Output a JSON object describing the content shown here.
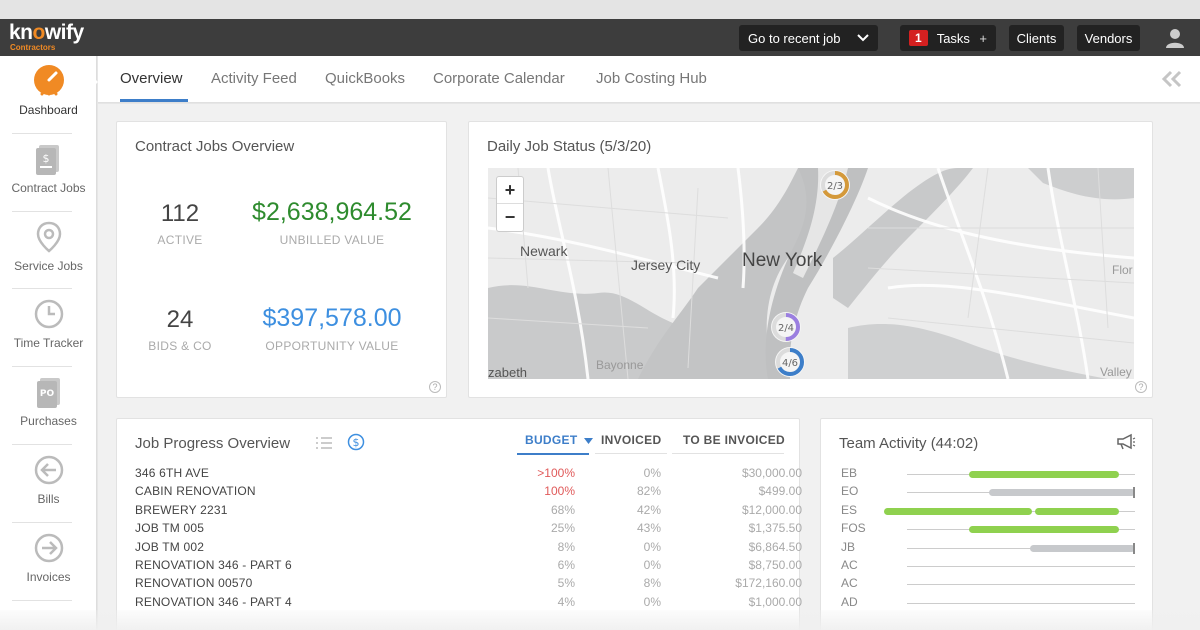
{
  "app": {
    "logo_text_a": "kn",
    "logo_text_b": "o",
    "logo_text_c": "wify",
    "logo_sub": "Contractors"
  },
  "topbar": {
    "recent_job_label": "Go to recent job",
    "tasks_count": "1",
    "tasks_label": "Tasks",
    "tasks_plus": "+",
    "clients_label": "Clients",
    "vendors_label": "Vendors"
  },
  "sidebar": {
    "items": [
      {
        "label": "Dashboard",
        "icon": "speedometer-icon"
      },
      {
        "label": "Contract Jobs",
        "icon": "dollar-document-icon"
      },
      {
        "label": "Service Jobs",
        "icon": "map-pin-icon"
      },
      {
        "label": "Time Tracker",
        "icon": "clock-icon"
      },
      {
        "label": "Purchases",
        "icon": "po-document-icon"
      },
      {
        "label": "Bills",
        "icon": "arrow-left-circle-icon"
      },
      {
        "label": "Invoices",
        "icon": "arrow-right-circle-icon"
      }
    ]
  },
  "tabs": [
    "Overview",
    "Activity Feed",
    "QuickBooks",
    "Corporate Calendar",
    "Job Costing Hub"
  ],
  "contract_jobs": {
    "title": "Contract Jobs Overview",
    "active_count": "112",
    "active_label": "ACTIVE",
    "unbilled_value": "$2,638,964.52",
    "unbilled_label": "UNBILLED VALUE",
    "bids_count": "24",
    "bids_label": "BIDS & CO",
    "opportunity_value": "$397,578.00",
    "opportunity_label": "OPPORTUNITY VALUE",
    "help": "?"
  },
  "daily_status": {
    "title": "Daily Job Status (5/3/20)",
    "zoom_in": "+",
    "zoom_out": "−",
    "labels": {
      "newark": "Newark",
      "jersey_city": "Jersey City",
      "new_york": "New York",
      "bayonne": "Bayonne",
      "elizabeth": "zabeth",
      "flor": "Flor",
      "valley": "Valley"
    },
    "markers": [
      {
        "label": "2/3",
        "done": 2,
        "total": 3,
        "color": "#d4993a"
      },
      {
        "label": "2/4",
        "done": 2,
        "total": 4,
        "color": "#9b7fe0"
      },
      {
        "label": "4/6",
        "done": 4,
        "total": 6,
        "color": "#3d7ec9"
      }
    ],
    "help": "?"
  },
  "job_progress": {
    "title": "Job Progress Overview",
    "columns": {
      "budget": "BUDGET",
      "invoiced": "INVOICED",
      "to_be_invoiced": "TO BE INVOICED"
    },
    "rows": [
      {
        "name": "346 6TH AVE",
        "budget": ">100%",
        "invoiced": "0%",
        "tbi": "$30,000.00",
        "alert": true
      },
      {
        "name": "CABIN RENOVATION",
        "budget": "100%",
        "invoiced": "82%",
        "tbi": "$499.00",
        "alert": true
      },
      {
        "name": "BREWERY 2231",
        "budget": "68%",
        "invoiced": "42%",
        "tbi": "$12,000.00",
        "alert": false
      },
      {
        "name": "JOB TM 005",
        "budget": "25%",
        "invoiced": "43%",
        "tbi": "$1,375.50",
        "alert": false
      },
      {
        "name": "JOB TM 002",
        "budget": "8%",
        "invoiced": "0%",
        "tbi": "$6,864.50",
        "alert": false
      },
      {
        "name": "RENOVATION 346 - PART 6",
        "budget": "6%",
        "invoiced": "0%",
        "tbi": "$8,750.00",
        "alert": false
      },
      {
        "name": "RENOVATION 00570",
        "budget": "5%",
        "invoiced": "8%",
        "tbi": "$172,160.00",
        "alert": false
      },
      {
        "name": "RENOVATION 346 - PART 4",
        "budget": "4%",
        "invoiced": "0%",
        "tbi": "$1,000.00",
        "alert": false
      }
    ],
    "colors": {
      "alert": "#e05a5a",
      "normal": "#aaaaaa"
    }
  },
  "team_activity": {
    "title": "Team Activity (44:02)",
    "rows": [
      {
        "initials": "EB",
        "segments": [
          {
            "start": 0.27,
            "end": 0.93,
            "color": "green"
          }
        ]
      },
      {
        "initials": "EO",
        "segments": [
          {
            "start": 0.36,
            "end": 1.0,
            "color": "gray"
          }
        ]
      },
      {
        "initials": "ES",
        "segments": [
          {
            "start": -0.1,
            "end": 0.55,
            "color": "green"
          },
          {
            "start": 0.56,
            "end": 0.93,
            "color": "green"
          }
        ]
      },
      {
        "initials": "FOS",
        "segments": [
          {
            "start": 0.27,
            "end": 0.93,
            "color": "green"
          }
        ]
      },
      {
        "initials": "JB",
        "segments": [
          {
            "start": 0.54,
            "end": 1.0,
            "color": "gray"
          }
        ]
      },
      {
        "initials": "AC",
        "segments": []
      },
      {
        "initials": "AC",
        "segments": []
      },
      {
        "initials": "AD",
        "segments": []
      }
    ]
  }
}
